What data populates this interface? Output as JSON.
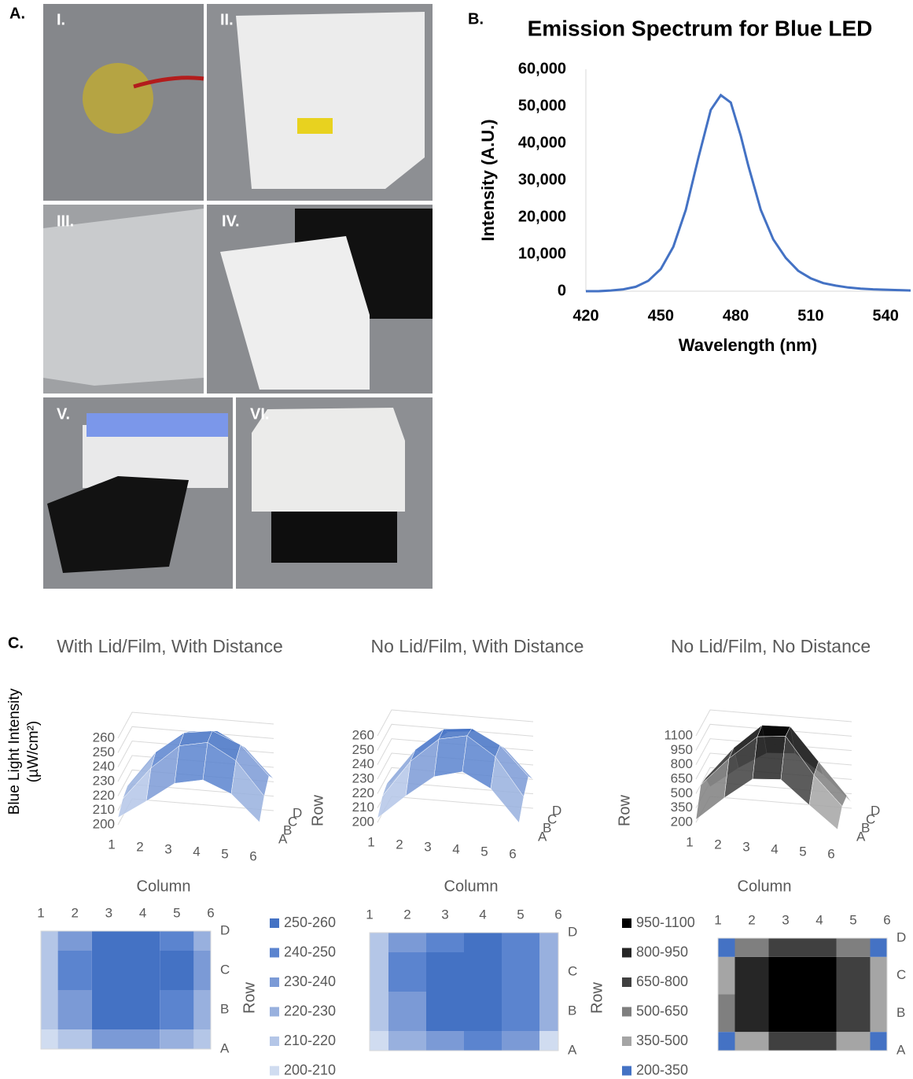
{
  "panel_a": {
    "label": "A.",
    "photos": [
      "I.",
      "II.",
      "III.",
      "IV.",
      "V.",
      "VI."
    ]
  },
  "chart_data": [
    {
      "type": "line",
      "panel_label": "B.",
      "title": "Emission Spectrum for Blue LED",
      "x_label": "Wavelength (nm)",
      "y_label": "Intensity (A.U.)",
      "color": "#4472c4",
      "x": [
        420,
        425,
        430,
        435,
        440,
        445,
        450,
        455,
        460,
        465,
        470,
        474,
        478,
        482,
        485,
        490,
        495,
        500,
        505,
        510,
        515,
        520,
        525,
        530,
        535,
        540,
        545,
        550
      ],
      "values": [
        0,
        0,
        200,
        500,
        1200,
        2800,
        6000,
        12000,
        22000,
        36000,
        49000,
        53000,
        51000,
        42000,
        34000,
        22000,
        14000,
        9000,
        5500,
        3500,
        2200,
        1500,
        1000,
        700,
        500,
        400,
        300,
        200
      ],
      "xlim": [
        420,
        550
      ],
      "xticks": [
        420,
        450,
        480,
        510,
        540
      ],
      "ylim": [
        0,
        60000
      ],
      "yticks": [
        0,
        {
          "value": 10000,
          "label": "10,000"
        },
        {
          "value": 20000,
          "label": "20,000"
        },
        {
          "value": 30000,
          "label": "30,000"
        },
        {
          "value": 40000,
          "label": "40,000"
        },
        {
          "value": 50000,
          "label": "50,000"
        },
        {
          "value": 60000,
          "label": "60,000"
        }
      ]
    },
    {
      "type": "surface",
      "panel_label": "C.",
      "title": "With Lid/Film, With Distance",
      "y_label": "Blue Light Intensity (µW/cm²)",
      "x_label": "Column",
      "row_label": "Row",
      "columns": [
        1,
        2,
        3,
        4,
        5,
        6
      ],
      "rows": [
        "A",
        "B",
        "C",
        "D"
      ],
      "zlim": [
        200,
        260
      ],
      "zticks": [
        200,
        210,
        220,
        230,
        240,
        250,
        260
      ],
      "values": [
        [
          205,
          218,
          232,
          236,
          228,
          210
        ],
        [
          212,
          235,
          252,
          256,
          245,
          222
        ],
        [
          215,
          240,
          255,
          258,
          250,
          230
        ],
        [
          212,
          236,
          250,
          252,
          242,
          222
        ]
      ],
      "legend": [
        {
          "range": [
            250,
            260
          ],
          "label": "250-260",
          "color": "#4472c4"
        },
        {
          "range": [
            240,
            250
          ],
          "label": "240-250",
          "color": "#5b84cf"
        },
        {
          "range": [
            230,
            240
          ],
          "label": "230-240",
          "color": "#7b9ad6"
        },
        {
          "range": [
            220,
            230
          ],
          "label": "220-230",
          "color": "#98b0de"
        },
        {
          "range": [
            210,
            220
          ],
          "label": "210-220",
          "color": "#b4c6e7"
        },
        {
          "range": [
            200,
            210
          ],
          "label": "200-210",
          "color": "#d0dcf0"
        }
      ]
    },
    {
      "type": "surface",
      "title": "No Lid/Film, With Distance",
      "x_label": "Column",
      "row_label": "Row",
      "columns": [
        1,
        2,
        3,
        4,
        5,
        6
      ],
      "rows": [
        "A",
        "B",
        "C",
        "D"
      ],
      "zlim": [
        200,
        260
      ],
      "zticks": [
        200,
        210,
        220,
        230,
        240,
        250,
        260
      ],
      "values": [
        [
          203,
          220,
          235,
          240,
          230,
          208
        ],
        [
          212,
          238,
          255,
          259,
          246,
          220
        ],
        [
          215,
          240,
          256,
          258,
          248,
          228
        ],
        [
          210,
          232,
          248,
          250,
          240,
          220
        ]
      ],
      "bands": [
        {
          "range": [
            250,
            260
          ],
          "color": "#4472c4"
        },
        {
          "range": [
            240,
            250
          ],
          "color": "#5b84cf"
        },
        {
          "range": [
            230,
            240
          ],
          "color": "#7b9ad6"
        },
        {
          "range": [
            220,
            230
          ],
          "color": "#98b0de"
        },
        {
          "range": [
            210,
            220
          ],
          "color": "#b4c6e7"
        },
        {
          "range": [
            200,
            210
          ],
          "color": "#d0dcf0"
        }
      ]
    },
    {
      "type": "surface",
      "title": "No Lid/Film, No Distance",
      "x_label": "Column",
      "columns": [
        1,
        2,
        3,
        4,
        5,
        6
      ],
      "rows": [
        "A",
        "B",
        "C",
        "D"
      ],
      "zlim": [
        200,
        1100
      ],
      "zticks": [
        200,
        350,
        500,
        650,
        800,
        950,
        1100
      ],
      "values": [
        [
          230,
          480,
          700,
          720,
          480,
          250
        ],
        [
          500,
          800,
          1050,
          1080,
          700,
          400
        ],
        [
          480,
          820,
          1080,
          1090,
          750,
          420
        ],
        [
          300,
          520,
          700,
          720,
          520,
          260
        ]
      ],
      "legend": [
        {
          "range": [
            950,
            1100
          ],
          "label": "950-1100",
          "color": "#000000"
        },
        {
          "range": [
            800,
            950
          ],
          "label": "800-950",
          "color": "#262626"
        },
        {
          "range": [
            650,
            800
          ],
          "label": "650-800",
          "color": "#404040"
        },
        {
          "range": [
            500,
            650
          ],
          "label": "500-650",
          "color": "#7f7f7f"
        },
        {
          "range": [
            350,
            500
          ],
          "label": "350-500",
          "color": "#a5a5a5"
        },
        {
          "range": [
            200,
            350
          ],
          "label": "200-350",
          "color": "#4472c4"
        }
      ]
    }
  ]
}
